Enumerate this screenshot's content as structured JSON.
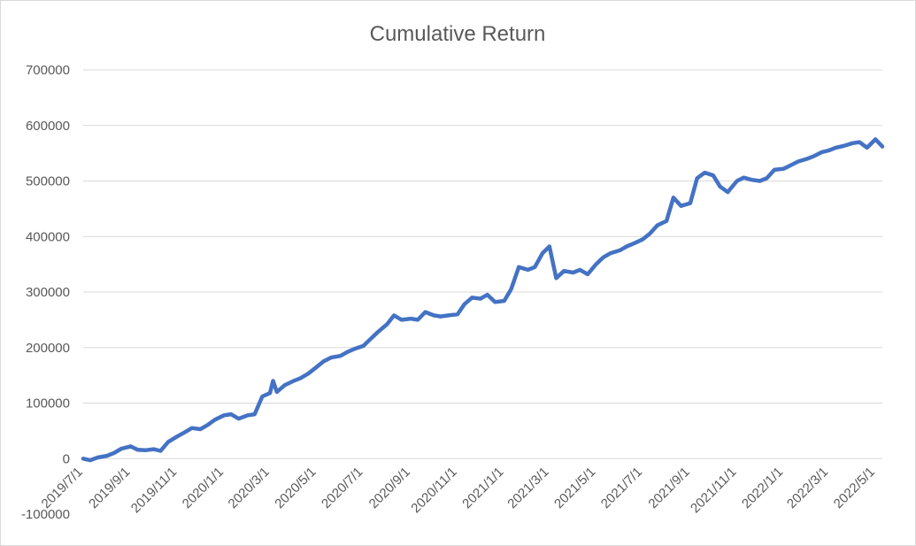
{
  "chart_data": {
    "type": "line",
    "title": "Cumulative Return",
    "xlabel": "",
    "ylabel": "",
    "ylim": [
      -100000,
      700000
    ],
    "y_ticks": [
      -100000,
      0,
      100000,
      200000,
      300000,
      400000,
      500000,
      600000,
      700000
    ],
    "y_tick_labels": [
      "-100000",
      "0",
      "100000",
      "200000",
      "300000",
      "400000",
      "500000",
      "600000",
      "700000"
    ],
    "x_ticks": [
      "2019/7/1",
      "2019/9/1",
      "2019/11/1",
      "2020/1/1",
      "2020/3/1",
      "2020/5/1",
      "2020/7/1",
      "2020/9/1",
      "2020/11/1",
      "2021/1/1",
      "2021/3/1",
      "2021/5/1",
      "2021/7/1",
      "2021/9/1",
      "2021/11/1",
      "2022/1/1",
      "2022/3/1",
      "2022/5/1"
    ],
    "grid": true,
    "legend": "none",
    "line_color": "#4472c4",
    "series": [
      {
        "x": [
          "2019/7/1",
          "2019/7/10",
          "2019/7/20",
          "2019/8/1",
          "2019/8/10",
          "2019/8/20",
          "2019/9/1",
          "2019/9/10",
          "2019/9/20",
          "2019/10/1",
          "2019/10/10",
          "2019/10/20",
          "2019/11/1",
          "2019/11/10",
          "2019/11/20",
          "2019/12/1",
          "2019/12/10",
          "2019/12/20",
          "2020/1/1",
          "2020/1/10",
          "2020/1/20",
          "2020/2/1",
          "2020/2/10",
          "2020/2/20",
          "2020/3/1",
          "2020/3/5",
          "2020/3/10",
          "2020/3/20",
          "2020/4/1",
          "2020/4/10",
          "2020/4/20",
          "2020/5/1",
          "2020/5/10",
          "2020/5/20",
          "2020/6/1",
          "2020/6/10",
          "2020/6/20",
          "2020/7/1",
          "2020/7/10",
          "2020/7/20",
          "2020/8/1",
          "2020/8/10",
          "2020/8/20",
          "2020/9/1",
          "2020/9/10",
          "2020/9/20",
          "2020/10/1",
          "2020/10/10",
          "2020/10/20",
          "2020/11/1",
          "2020/11/10",
          "2020/11/20",
          "2020/12/1",
          "2020/12/10",
          "2020/12/20",
          "2021/1/1",
          "2021/1/10",
          "2021/1/20",
          "2021/2/1",
          "2021/2/10",
          "2021/2/20",
          "2021/3/1",
          "2021/3/10",
          "2021/3/20",
          "2021/4/1",
          "2021/4/10",
          "2021/4/20",
          "2021/5/1",
          "2021/5/10",
          "2021/5/20",
          "2021/6/1",
          "2021/6/10",
          "2021/6/20",
          "2021/7/1",
          "2021/7/10",
          "2021/7/20",
          "2021/8/1",
          "2021/8/10",
          "2021/8/20",
          "2021/9/1",
          "2021/9/10",
          "2021/9/20",
          "2021/10/1",
          "2021/10/10",
          "2021/10/20",
          "2021/11/1",
          "2021/11/10",
          "2021/11/20",
          "2021/12/1",
          "2021/12/10",
          "2021/12/20",
          "2022/1/1",
          "2022/1/10",
          "2022/1/20",
          "2022/2/1",
          "2022/2/10",
          "2022/2/20",
          "2022/3/1",
          "2022/3/10",
          "2022/3/20",
          "2022/4/1",
          "2022/4/10",
          "2022/4/20",
          "2022/5/1",
          "2022/5/10"
        ],
        "y": [
          0,
          -3000,
          2000,
          5000,
          10000,
          18000,
          22000,
          16000,
          15000,
          17000,
          14000,
          30000,
          40000,
          47000,
          55000,
          53000,
          60000,
          70000,
          78000,
          80000,
          72000,
          78000,
          80000,
          112000,
          118000,
          140000,
          120000,
          132000,
          140000,
          145000,
          153000,
          165000,
          175000,
          182000,
          185000,
          192000,
          198000,
          203000,
          215000,
          228000,
          242000,
          258000,
          250000,
          252000,
          250000,
          264000,
          258000,
          256000,
          258000,
          260000,
          278000,
          290000,
          288000,
          295000,
          282000,
          284000,
          305000,
          345000,
          340000,
          345000,
          370000,
          382000,
          325000,
          338000,
          335000,
          340000,
          332000,
          350000,
          362000,
          370000,
          375000,
          382000,
          388000,
          395000,
          405000,
          420000,
          428000,
          470000,
          455000,
          460000,
          505000,
          515000,
          510000,
          490000,
          480000,
          500000,
          506000,
          502000,
          500000,
          505000,
          520000,
          522000,
          528000,
          535000,
          540000,
          545000,
          552000,
          555000,
          560000,
          563000,
          568000,
          570000,
          560000,
          575000,
          562000
        ]
      }
    ]
  }
}
